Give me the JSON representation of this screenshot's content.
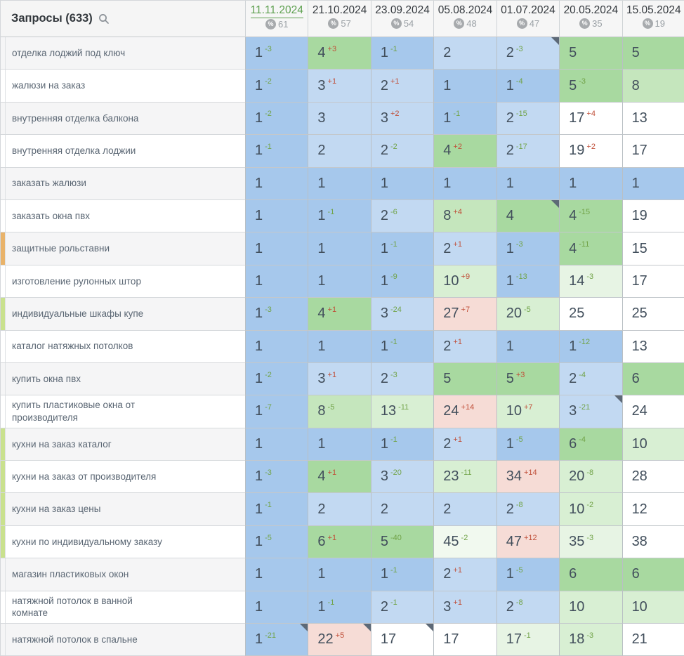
{
  "table": {
    "queries_header": "Запросы",
    "queries_count": "(633)",
    "percent_symbol": "%",
    "columns": [
      {
        "date": "11.11.2024",
        "percent": "61",
        "active": true
      },
      {
        "date": "21.10.2024",
        "percent": "57",
        "active": false
      },
      {
        "date": "23.09.2024",
        "percent": "54",
        "active": false
      },
      {
        "date": "05.08.2024",
        "percent": "48",
        "active": false
      },
      {
        "date": "01.07.2024",
        "percent": "47",
        "active": false
      },
      {
        "date": "20.05.2024",
        "percent": "35",
        "active": false
      },
      {
        "date": "15.05.2024",
        "percent": "19",
        "active": false
      }
    ],
    "rows": [
      {
        "query": "отделка лоджий под ключ",
        "marker": null,
        "cells": [
          {
            "v": "1",
            "d": "-3",
            "dir": "up",
            "bg": "b1"
          },
          {
            "v": "4",
            "d": "+3",
            "dir": "down",
            "bg": "g1"
          },
          {
            "v": "1",
            "d": "-1",
            "dir": "up",
            "bg": "b1"
          },
          {
            "v": "2",
            "d": null,
            "dir": null,
            "bg": "b2"
          },
          {
            "v": "2",
            "d": "-3",
            "dir": "up",
            "bg": "b2",
            "note": true
          },
          {
            "v": "5",
            "d": null,
            "dir": null,
            "bg": "g1"
          },
          {
            "v": "5",
            "d": null,
            "dir": null,
            "bg": "g1"
          }
        ]
      },
      {
        "query": "жалюзи на заказ",
        "marker": null,
        "cells": [
          {
            "v": "1",
            "d": "-2",
            "dir": "up",
            "bg": "b1"
          },
          {
            "v": "3",
            "d": "+1",
            "dir": "down",
            "bg": "b2"
          },
          {
            "v": "2",
            "d": "+1",
            "dir": "down",
            "bg": "b2"
          },
          {
            "v": "1",
            "d": null,
            "dir": null,
            "bg": "b1"
          },
          {
            "v": "1",
            "d": "-4",
            "dir": "up",
            "bg": "b1"
          },
          {
            "v": "5",
            "d": "-3",
            "dir": "up",
            "bg": "g1"
          },
          {
            "v": "8",
            "d": null,
            "dir": null,
            "bg": "g2"
          }
        ]
      },
      {
        "query": "внутренняя отделка балкона",
        "marker": null,
        "cells": [
          {
            "v": "1",
            "d": "-2",
            "dir": "up",
            "bg": "b1"
          },
          {
            "v": "3",
            "d": null,
            "dir": null,
            "bg": "b2"
          },
          {
            "v": "3",
            "d": "+2",
            "dir": "down",
            "bg": "b2"
          },
          {
            "v": "1",
            "d": "-1",
            "dir": "up",
            "bg": "b1"
          },
          {
            "v": "2",
            "d": "-15",
            "dir": "up",
            "bg": "b2"
          },
          {
            "v": "17",
            "d": "+4",
            "dir": "down",
            "bg": "w"
          },
          {
            "v": "13",
            "d": null,
            "dir": null,
            "bg": "w"
          }
        ]
      },
      {
        "query": "внутренняя отделка лоджии",
        "marker": null,
        "cells": [
          {
            "v": "1",
            "d": "-1",
            "dir": "up",
            "bg": "b1"
          },
          {
            "v": "2",
            "d": null,
            "dir": null,
            "bg": "b2"
          },
          {
            "v": "2",
            "d": "-2",
            "dir": "up",
            "bg": "b2"
          },
          {
            "v": "4",
            "d": "+2",
            "dir": "down",
            "bg": "g1"
          },
          {
            "v": "2",
            "d": "-17",
            "dir": "up",
            "bg": "b2"
          },
          {
            "v": "19",
            "d": "+2",
            "dir": "down",
            "bg": "w"
          },
          {
            "v": "17",
            "d": null,
            "dir": null,
            "bg": "w"
          }
        ]
      },
      {
        "query": "заказать жалюзи",
        "marker": null,
        "cells": [
          {
            "v": "1",
            "d": null,
            "dir": null,
            "bg": "b1"
          },
          {
            "v": "1",
            "d": null,
            "dir": null,
            "bg": "b1"
          },
          {
            "v": "1",
            "d": null,
            "dir": null,
            "bg": "b1"
          },
          {
            "v": "1",
            "d": null,
            "dir": null,
            "bg": "b1"
          },
          {
            "v": "1",
            "d": null,
            "dir": null,
            "bg": "b1"
          },
          {
            "v": "1",
            "d": null,
            "dir": null,
            "bg": "b1"
          },
          {
            "v": "1",
            "d": null,
            "dir": null,
            "bg": "b1"
          }
        ]
      },
      {
        "query": "заказать окна пвх",
        "marker": null,
        "cells": [
          {
            "v": "1",
            "d": null,
            "dir": null,
            "bg": "b1"
          },
          {
            "v": "1",
            "d": "-1",
            "dir": "up",
            "bg": "b1"
          },
          {
            "v": "2",
            "d": "-6",
            "dir": "up",
            "bg": "b2"
          },
          {
            "v": "8",
            "d": "+4",
            "dir": "down",
            "bg": "g2"
          },
          {
            "v": "4",
            "d": null,
            "dir": null,
            "bg": "g1",
            "note": true
          },
          {
            "v": "4",
            "d": "-15",
            "dir": "up",
            "bg": "g1"
          },
          {
            "v": "19",
            "d": null,
            "dir": null,
            "bg": "w"
          }
        ]
      },
      {
        "query": "защитные рольставни",
        "marker": "marker_orange",
        "cells": [
          {
            "v": "1",
            "d": null,
            "dir": null,
            "bg": "b1"
          },
          {
            "v": "1",
            "d": null,
            "dir": null,
            "bg": "b1"
          },
          {
            "v": "1",
            "d": "-1",
            "dir": "up",
            "bg": "b1"
          },
          {
            "v": "2",
            "d": "+1",
            "dir": "down",
            "bg": "b2"
          },
          {
            "v": "1",
            "d": "-3",
            "dir": "up",
            "bg": "b1"
          },
          {
            "v": "4",
            "d": "-11",
            "dir": "up",
            "bg": "g1"
          },
          {
            "v": "15",
            "d": null,
            "dir": null,
            "bg": "w"
          }
        ]
      },
      {
        "query": "изготовление рулонных штор",
        "marker": null,
        "cells": [
          {
            "v": "1",
            "d": null,
            "dir": null,
            "bg": "b1"
          },
          {
            "v": "1",
            "d": null,
            "dir": null,
            "bg": "b1"
          },
          {
            "v": "1",
            "d": "-9",
            "dir": "up",
            "bg": "b1"
          },
          {
            "v": "10",
            "d": "+9",
            "dir": "down",
            "bg": "g3"
          },
          {
            "v": "1",
            "d": "-13",
            "dir": "up",
            "bg": "b1"
          },
          {
            "v": "14",
            "d": "-3",
            "dir": "up",
            "bg": "g4"
          },
          {
            "v": "17",
            "d": null,
            "dir": null,
            "bg": "w"
          }
        ]
      },
      {
        "query": "индивидуальные шкафы купе",
        "marker": "marker_green",
        "cells": [
          {
            "v": "1",
            "d": "-3",
            "dir": "up",
            "bg": "b1"
          },
          {
            "v": "4",
            "d": "+1",
            "dir": "down",
            "bg": "g1"
          },
          {
            "v": "3",
            "d": "-24",
            "dir": "up",
            "bg": "b2"
          },
          {
            "v": "27",
            "d": "+7",
            "dir": "down",
            "bg": "p1"
          },
          {
            "v": "20",
            "d": "-5",
            "dir": "up",
            "bg": "g3"
          },
          {
            "v": "25",
            "d": null,
            "dir": null,
            "bg": "w"
          },
          {
            "v": "25",
            "d": null,
            "dir": null,
            "bg": "w"
          }
        ]
      },
      {
        "query": "каталог натяжных потолков",
        "marker": null,
        "cells": [
          {
            "v": "1",
            "d": null,
            "dir": null,
            "bg": "b1"
          },
          {
            "v": "1",
            "d": null,
            "dir": null,
            "bg": "b1"
          },
          {
            "v": "1",
            "d": "-1",
            "dir": "up",
            "bg": "b1"
          },
          {
            "v": "2",
            "d": "+1",
            "dir": "down",
            "bg": "b2"
          },
          {
            "v": "1",
            "d": null,
            "dir": null,
            "bg": "b1"
          },
          {
            "v": "1",
            "d": "-12",
            "dir": "up",
            "bg": "b1"
          },
          {
            "v": "13",
            "d": null,
            "dir": null,
            "bg": "w"
          }
        ]
      },
      {
        "query": "купить окна пвх",
        "marker": null,
        "cells": [
          {
            "v": "1",
            "d": "-2",
            "dir": "up",
            "bg": "b1"
          },
          {
            "v": "3",
            "d": "+1",
            "dir": "down",
            "bg": "b2"
          },
          {
            "v": "2",
            "d": "-3",
            "dir": "up",
            "bg": "b2"
          },
          {
            "v": "5",
            "d": null,
            "dir": null,
            "bg": "g1"
          },
          {
            "v": "5",
            "d": "+3",
            "dir": "down",
            "bg": "g1"
          },
          {
            "v": "2",
            "d": "-4",
            "dir": "up",
            "bg": "b2"
          },
          {
            "v": "6",
            "d": null,
            "dir": null,
            "bg": "g1"
          }
        ]
      },
      {
        "query": "купить пластиковые окна от производителя",
        "marker": null,
        "cells": [
          {
            "v": "1",
            "d": "-7",
            "dir": "up",
            "bg": "b1"
          },
          {
            "v": "8",
            "d": "-5",
            "dir": "up",
            "bg": "g2"
          },
          {
            "v": "13",
            "d": "-11",
            "dir": "up",
            "bg": "g3"
          },
          {
            "v": "24",
            "d": "+14",
            "dir": "down",
            "bg": "p1"
          },
          {
            "v": "10",
            "d": "+7",
            "dir": "down",
            "bg": "g3"
          },
          {
            "v": "3",
            "d": "-21",
            "dir": "up",
            "bg": "b2",
            "note": true
          },
          {
            "v": "24",
            "d": null,
            "dir": null,
            "bg": "w"
          }
        ]
      },
      {
        "query": "кухни на заказ каталог",
        "marker": "marker_green",
        "cells": [
          {
            "v": "1",
            "d": null,
            "dir": null,
            "bg": "b1"
          },
          {
            "v": "1",
            "d": null,
            "dir": null,
            "bg": "b1"
          },
          {
            "v": "1",
            "d": "-1",
            "dir": "up",
            "bg": "b1"
          },
          {
            "v": "2",
            "d": "+1",
            "dir": "down",
            "bg": "b2"
          },
          {
            "v": "1",
            "d": "-5",
            "dir": "up",
            "bg": "b1"
          },
          {
            "v": "6",
            "d": "-4",
            "dir": "up",
            "bg": "g1"
          },
          {
            "v": "10",
            "d": null,
            "dir": null,
            "bg": "g3"
          }
        ]
      },
      {
        "query": "кухни на заказ от производителя",
        "marker": "marker_green",
        "cells": [
          {
            "v": "1",
            "d": "-3",
            "dir": "up",
            "bg": "b1"
          },
          {
            "v": "4",
            "d": "+1",
            "dir": "down",
            "bg": "g1"
          },
          {
            "v": "3",
            "d": "-20",
            "dir": "up",
            "bg": "b2"
          },
          {
            "v": "23",
            "d": "-11",
            "dir": "up",
            "bg": "g3"
          },
          {
            "v": "34",
            "d": "+14",
            "dir": "down",
            "bg": "p1"
          },
          {
            "v": "20",
            "d": "-8",
            "dir": "up",
            "bg": "g3"
          },
          {
            "v": "28",
            "d": null,
            "dir": null,
            "bg": "w"
          }
        ]
      },
      {
        "query": "кухни на заказ цены",
        "marker": "marker_green",
        "cells": [
          {
            "v": "1",
            "d": "-1",
            "dir": "up",
            "bg": "b1"
          },
          {
            "v": "2",
            "d": null,
            "dir": null,
            "bg": "b2"
          },
          {
            "v": "2",
            "d": null,
            "dir": null,
            "bg": "b2"
          },
          {
            "v": "2",
            "d": null,
            "dir": null,
            "bg": "b2"
          },
          {
            "v": "2",
            "d": "-8",
            "dir": "up",
            "bg": "b2"
          },
          {
            "v": "10",
            "d": "-2",
            "dir": "up",
            "bg": "g3"
          },
          {
            "v": "12",
            "d": null,
            "dir": null,
            "bg": "w"
          }
        ]
      },
      {
        "query": "кухни по индивидуальному заказу",
        "marker": "marker_green",
        "cells": [
          {
            "v": "1",
            "d": "-5",
            "dir": "up",
            "bg": "b1"
          },
          {
            "v": "6",
            "d": "+1",
            "dir": "down",
            "bg": "g1"
          },
          {
            "v": "5",
            "d": "-40",
            "dir": "up",
            "bg": "g1"
          },
          {
            "v": "45",
            "d": "-2",
            "dir": "up",
            "bg": "g5"
          },
          {
            "v": "47",
            "d": "+12",
            "dir": "down",
            "bg": "p1"
          },
          {
            "v": "35",
            "d": "-3",
            "dir": "up",
            "bg": "g4"
          },
          {
            "v": "38",
            "d": null,
            "dir": null,
            "bg": "w"
          }
        ]
      },
      {
        "query": "магазин пластиковых окон",
        "marker": null,
        "cells": [
          {
            "v": "1",
            "d": null,
            "dir": null,
            "bg": "b1"
          },
          {
            "v": "1",
            "d": null,
            "dir": null,
            "bg": "b1"
          },
          {
            "v": "1",
            "d": "-1",
            "dir": "up",
            "bg": "b1"
          },
          {
            "v": "2",
            "d": "+1",
            "dir": "down",
            "bg": "b2"
          },
          {
            "v": "1",
            "d": "-5",
            "dir": "up",
            "bg": "b1"
          },
          {
            "v": "6",
            "d": null,
            "dir": null,
            "bg": "g1"
          },
          {
            "v": "6",
            "d": null,
            "dir": null,
            "bg": "g1"
          }
        ]
      },
      {
        "query": "натяжной потолок в ванной комнате",
        "marker": null,
        "cells": [
          {
            "v": "1",
            "d": null,
            "dir": null,
            "bg": "b1"
          },
          {
            "v": "1",
            "d": "-1",
            "dir": "up",
            "bg": "b1"
          },
          {
            "v": "2",
            "d": "-1",
            "dir": "up",
            "bg": "b2"
          },
          {
            "v": "3",
            "d": "+1",
            "dir": "down",
            "bg": "b2"
          },
          {
            "v": "2",
            "d": "-8",
            "dir": "up",
            "bg": "b2"
          },
          {
            "v": "10",
            "d": null,
            "dir": null,
            "bg": "g3"
          },
          {
            "v": "10",
            "d": null,
            "dir": null,
            "bg": "g3"
          }
        ]
      },
      {
        "query": "натяжной потолок в спальне",
        "marker": null,
        "cells": [
          {
            "v": "1",
            "d": "-21",
            "dir": "up",
            "bg": "b1",
            "note": true
          },
          {
            "v": "22",
            "d": "+5",
            "dir": "down",
            "bg": "p1",
            "note": true
          },
          {
            "v": "17",
            "d": null,
            "dir": null,
            "bg": "w",
            "note": true
          },
          {
            "v": "17",
            "d": null,
            "dir": null,
            "bg": "w"
          },
          {
            "v": "17",
            "d": "-1",
            "dir": "up",
            "bg": "g4"
          },
          {
            "v": "18",
            "d": "-3",
            "dir": "up",
            "bg": "g3"
          },
          {
            "v": "21",
            "d": null,
            "dir": null,
            "bg": "w"
          }
        ]
      }
    ]
  },
  "palette": {
    "b1": "#a6c8ec",
    "b2": "#c2d9f2",
    "g1": "#a8d9a0",
    "g2": "#c5e6bd",
    "g3": "#d8efd3",
    "g4": "#e7f4e4",
    "g5": "#f1f9ef",
    "p1": "#f6dcd6",
    "w": "#ffffff",
    "marker_orange": "#e9b36a",
    "marker_green": "#c9e18e",
    "change_up": "#71a348",
    "change_down": "#c0503a",
    "active_date": "#5ea050"
  }
}
